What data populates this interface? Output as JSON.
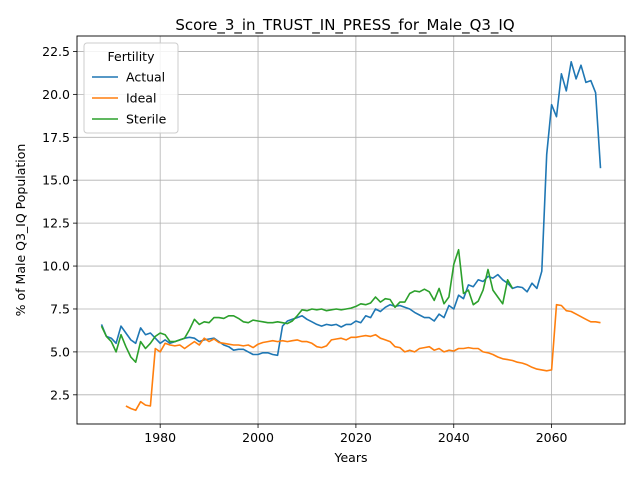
{
  "chart_data": {
    "type": "line",
    "title": "Score_3_in_TRUST_IN_PRESS_for_Male_Q3_IQ",
    "xlabel": "Years",
    "ylabel": "% of Male Q3_IQ Population",
    "xlim": [
      1963,
      2075
    ],
    "ylim": [
      0.8,
      23.4
    ],
    "xticks": [
      1980,
      2000,
      2020,
      2040,
      2060
    ],
    "yticks": [
      2.5,
      5.0,
      7.5,
      10.0,
      12.5,
      15.0,
      17.5,
      20.0,
      22.5
    ],
    "grid": true,
    "legend": {
      "title": "Fertility",
      "position": "top-left"
    },
    "series": [
      {
        "name": "Actual",
        "color": "#1f77b4",
        "x": [
          1968,
          1969,
          1970,
          1971,
          1972,
          1973,
          1974,
          1975,
          1976,
          1977,
          1978,
          1979,
          1980,
          1981,
          1982,
          1983,
          1984,
          1985,
          1986,
          1987,
          1988,
          1989,
          1990,
          1991,
          1992,
          1993,
          1994,
          1995,
          1996,
          1997,
          1998,
          1999,
          2000,
          2001,
          2002,
          2003,
          2004,
          2005,
          2006,
          2007,
          2008,
          2009,
          2010,
          2011,
          2012,
          2013,
          2014,
          2015,
          2016,
          2017,
          2018,
          2019,
          2020,
          2021,
          2022,
          2023,
          2024,
          2025,
          2026,
          2027,
          2028,
          2029,
          2030,
          2031,
          2032,
          2033,
          2034,
          2035,
          2036,
          2037,
          2038,
          2039,
          2040,
          2041,
          2042,
          2043,
          2044,
          2045,
          2046,
          2047,
          2048,
          2049,
          2050,
          2051,
          2052,
          2053,
          2054,
          2055,
          2056,
          2057,
          2058,
          2059,
          2060,
          2061,
          2062,
          2063,
          2064,
          2065,
          2066,
          2067,
          2068,
          2069,
          2070
        ],
        "y": [
          6.6,
          5.9,
          5.8,
          5.5,
          6.5,
          6.1,
          5.7,
          5.5,
          6.4,
          6.0,
          6.1,
          5.8,
          5.5,
          5.7,
          5.5,
          5.6,
          5.7,
          5.8,
          5.85,
          5.8,
          5.6,
          5.7,
          5.75,
          5.8,
          5.6,
          5.4,
          5.3,
          5.1,
          5.15,
          5.15,
          5.0,
          4.85,
          4.85,
          4.95,
          4.95,
          4.85,
          4.8,
          6.5,
          6.8,
          6.9,
          7.0,
          7.1,
          6.9,
          6.75,
          6.6,
          6.5,
          6.6,
          6.55,
          6.6,
          6.45,
          6.6,
          6.6,
          6.8,
          6.7,
          7.1,
          7.0,
          7.5,
          7.35,
          7.6,
          7.75,
          7.65,
          7.7,
          7.6,
          7.5,
          7.3,
          7.15,
          7.0,
          7.0,
          6.8,
          7.2,
          7.0,
          7.7,
          7.5,
          8.3,
          8.1,
          8.9,
          8.8,
          9.2,
          9.1,
          9.4,
          9.3,
          9.5,
          9.2,
          9.0,
          8.7,
          8.8,
          8.75,
          8.5,
          9.0,
          8.7,
          9.7,
          16.5,
          19.4,
          18.7,
          21.2,
          20.2,
          21.9,
          20.9,
          21.7,
          20.7,
          20.8,
          20.1,
          15.7
        ]
      },
      {
        "name": "Ideal",
        "color": "#ff7f0e",
        "x": [
          1973,
          1974,
          1975,
          1976,
          1977,
          1978,
          1979,
          1980,
          1981,
          1982,
          1983,
          1984,
          1985,
          1986,
          1987,
          1988,
          1989,
          1990,
          1991,
          1992,
          1993,
          1994,
          1995,
          1996,
          1997,
          1998,
          1999,
          2000,
          2001,
          2002,
          2003,
          2004,
          2005,
          2006,
          2007,
          2008,
          2009,
          2010,
          2011,
          2012,
          2013,
          2014,
          2015,
          2016,
          2017,
          2018,
          2019,
          2020,
          2021,
          2022,
          2023,
          2024,
          2025,
          2026,
          2027,
          2028,
          2029,
          2030,
          2031,
          2032,
          2033,
          2034,
          2035,
          2036,
          2037,
          2038,
          2039,
          2040,
          2041,
          2042,
          2043,
          2044,
          2045,
          2046,
          2047,
          2048,
          2049,
          2050,
          2051,
          2052,
          2053,
          2054,
          2055,
          2056,
          2057,
          2058,
          2059,
          2060,
          2061,
          2062,
          2063,
          2064,
          2065,
          2066,
          2067,
          2068,
          2069,
          2070
        ],
        "y": [
          1.85,
          1.7,
          1.6,
          2.1,
          1.9,
          1.85,
          5.2,
          5.0,
          5.5,
          5.4,
          5.35,
          5.4,
          5.2,
          5.4,
          5.6,
          5.4,
          5.8,
          5.6,
          5.75,
          5.55,
          5.5,
          5.45,
          5.4,
          5.4,
          5.35,
          5.4,
          5.25,
          5.45,
          5.55,
          5.6,
          5.65,
          5.6,
          5.65,
          5.6,
          5.65,
          5.7,
          5.6,
          5.6,
          5.5,
          5.3,
          5.25,
          5.35,
          5.7,
          5.75,
          5.8,
          5.7,
          5.85,
          5.85,
          5.9,
          5.95,
          5.9,
          6.0,
          5.8,
          5.7,
          5.6,
          5.3,
          5.25,
          5.0,
          5.1,
          5.0,
          5.2,
          5.25,
          5.3,
          5.1,
          5.2,
          5.0,
          5.1,
          5.05,
          5.2,
          5.2,
          5.25,
          5.2,
          5.2,
          5.0,
          4.95,
          4.85,
          4.7,
          4.6,
          4.55,
          4.5,
          4.4,
          4.35,
          4.25,
          4.1,
          4.0,
          3.95,
          3.9,
          3.95,
          7.75,
          7.7,
          7.4,
          7.35,
          7.2,
          7.05,
          6.9,
          6.75,
          6.75,
          6.7
        ]
      },
      {
        "name": "Sterile",
        "color": "#2ca02c",
        "x": [
          1968,
          1969,
          1970,
          1971,
          1972,
          1973,
          1974,
          1975,
          1976,
          1977,
          1978,
          1979,
          1980,
          1981,
          1982,
          1983,
          1984,
          1985,
          1986,
          1987,
          1988,
          1989,
          1990,
          1991,
          1992,
          1993,
          1994,
          1995,
          1996,
          1997,
          1998,
          1999,
          2000,
          2001,
          2002,
          2003,
          2004,
          2005,
          2006,
          2007,
          2008,
          2009,
          2010,
          2011,
          2012,
          2013,
          2014,
          2015,
          2016,
          2017,
          2018,
          2019,
          2020,
          2021,
          2022,
          2023,
          2024,
          2025,
          2026,
          2027,
          2028,
          2029,
          2030,
          2031,
          2032,
          2033,
          2034,
          2035,
          2036,
          2037,
          2038,
          2039,
          2040,
          2041,
          2042,
          2043,
          2044,
          2045,
          2046,
          2047,
          2048,
          2049,
          2050,
          2051,
          2052
        ],
        "y": [
          6.5,
          5.9,
          5.6,
          5.0,
          6.0,
          5.3,
          4.7,
          4.4,
          5.6,
          5.2,
          5.5,
          5.9,
          6.1,
          6.0,
          5.6,
          5.6,
          5.7,
          5.8,
          6.3,
          6.9,
          6.6,
          6.75,
          6.7,
          7.0,
          7.0,
          6.95,
          7.1,
          7.1,
          6.95,
          6.75,
          6.7,
          6.85,
          6.8,
          6.75,
          6.7,
          6.7,
          6.75,
          6.7,
          6.65,
          6.8,
          7.1,
          7.45,
          7.4,
          7.5,
          7.45,
          7.5,
          7.4,
          7.45,
          7.5,
          7.45,
          7.5,
          7.55,
          7.65,
          7.8,
          7.75,
          7.85,
          8.2,
          7.9,
          8.1,
          8.05,
          7.6,
          7.9,
          7.9,
          8.4,
          8.55,
          8.5,
          8.65,
          8.5,
          8.0,
          8.7,
          7.8,
          8.2,
          10.1,
          10.95,
          8.4,
          8.6,
          7.75,
          7.95,
          8.6,
          9.8,
          8.6,
          8.2,
          7.8,
          9.2,
          8.7
        ]
      }
    ]
  }
}
